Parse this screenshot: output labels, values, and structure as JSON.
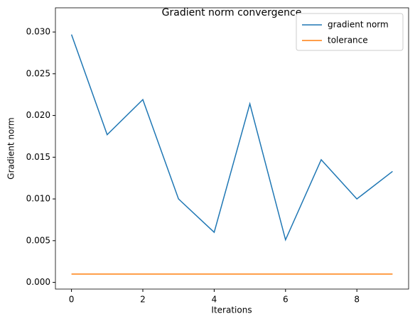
{
  "chart_data": {
    "type": "line",
    "title": "Gradient norm convergence",
    "x_label": "Iterations",
    "y_label": "Gradient norm",
    "x": [
      0,
      1,
      2,
      3,
      4,
      5,
      6,
      7,
      8,
      9
    ],
    "series": [
      {
        "name": "gradient norm",
        "color": "#1f77b4",
        "values": [
          0.0297,
          0.0177,
          0.0219,
          0.01,
          0.006,
          0.0214,
          0.0051,
          0.0147,
          0.01,
          0.0133
        ]
      },
      {
        "name": "tolerance",
        "color": "#ff7f0e",
        "values": [
          0.001,
          0.001,
          0.001,
          0.001,
          0.001,
          0.001,
          0.001,
          0.001,
          0.001,
          0.001
        ]
      }
    ],
    "xlim": [
      -0.45,
      9.45
    ],
    "ylim": [
      -0.0008,
      0.0329
    ],
    "xticks": [
      0,
      2,
      4,
      6,
      8
    ],
    "yticks": [
      {
        "value": 0,
        "label": "0.000"
      },
      {
        "value": 0.005,
        "label": "0.005"
      },
      {
        "value": 0.01,
        "label": "0.010"
      },
      {
        "value": 0.015,
        "label": "0.015"
      },
      {
        "value": 0.02,
        "label": "0.020"
      },
      {
        "value": 0.025,
        "label": "0.025"
      },
      {
        "value": 0.03,
        "label": "0.030"
      }
    ],
    "legend": "upper right"
  }
}
